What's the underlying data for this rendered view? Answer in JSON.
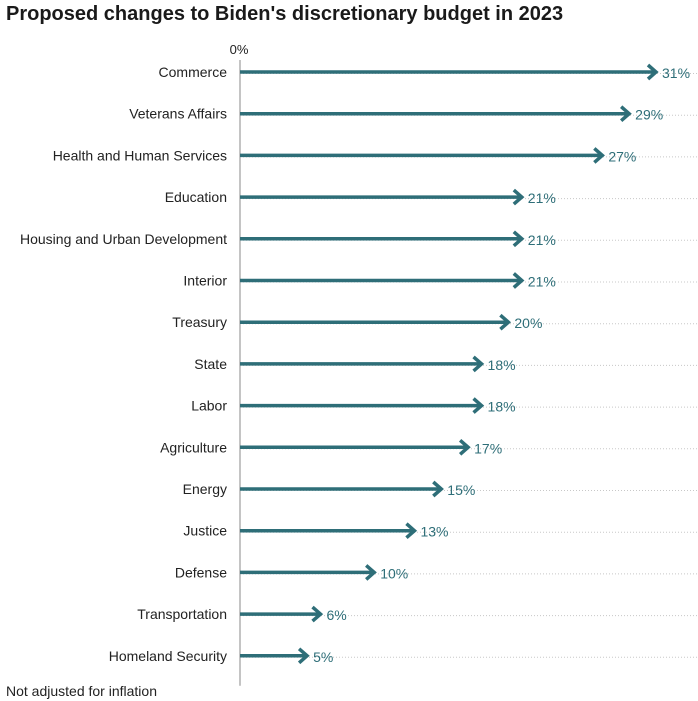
{
  "title": "Proposed changes to Biden's discretionary budget in 2023",
  "note": "Not adjusted for inflation",
  "colors": {
    "bar": "#2e6e78",
    "value_text": "#2e6e78",
    "gridline": "#c8c8c8",
    "axis": "#888888"
  },
  "chart_data": {
    "type": "bar",
    "orientation": "horizontal",
    "title": "Proposed changes to Biden's discretionary budget in 2023",
    "zero_label": "0%",
    "xlim": [
      0,
      31
    ],
    "categories": [
      "Commerce",
      "Veterans Affairs",
      "Health and Human Services",
      "Education",
      "Housing and Urban Development",
      "Interior",
      "Treasury",
      "State",
      "Labor",
      "Agriculture",
      "Energy",
      "Justice",
      "Defense",
      "Transportation",
      "Homeland Security"
    ],
    "values": [
      31,
      29,
      27,
      21,
      21,
      21,
      20,
      18,
      18,
      17,
      15,
      13,
      10,
      6,
      5
    ],
    "value_labels": [
      "31%",
      "29%",
      "27%",
      "21%",
      "21%",
      "21%",
      "20%",
      "18%",
      "18%",
      "17%",
      "15%",
      "13%",
      "10%",
      "6%",
      "5%"
    ],
    "grid": "dotted row guides",
    "marker": "arrow"
  }
}
